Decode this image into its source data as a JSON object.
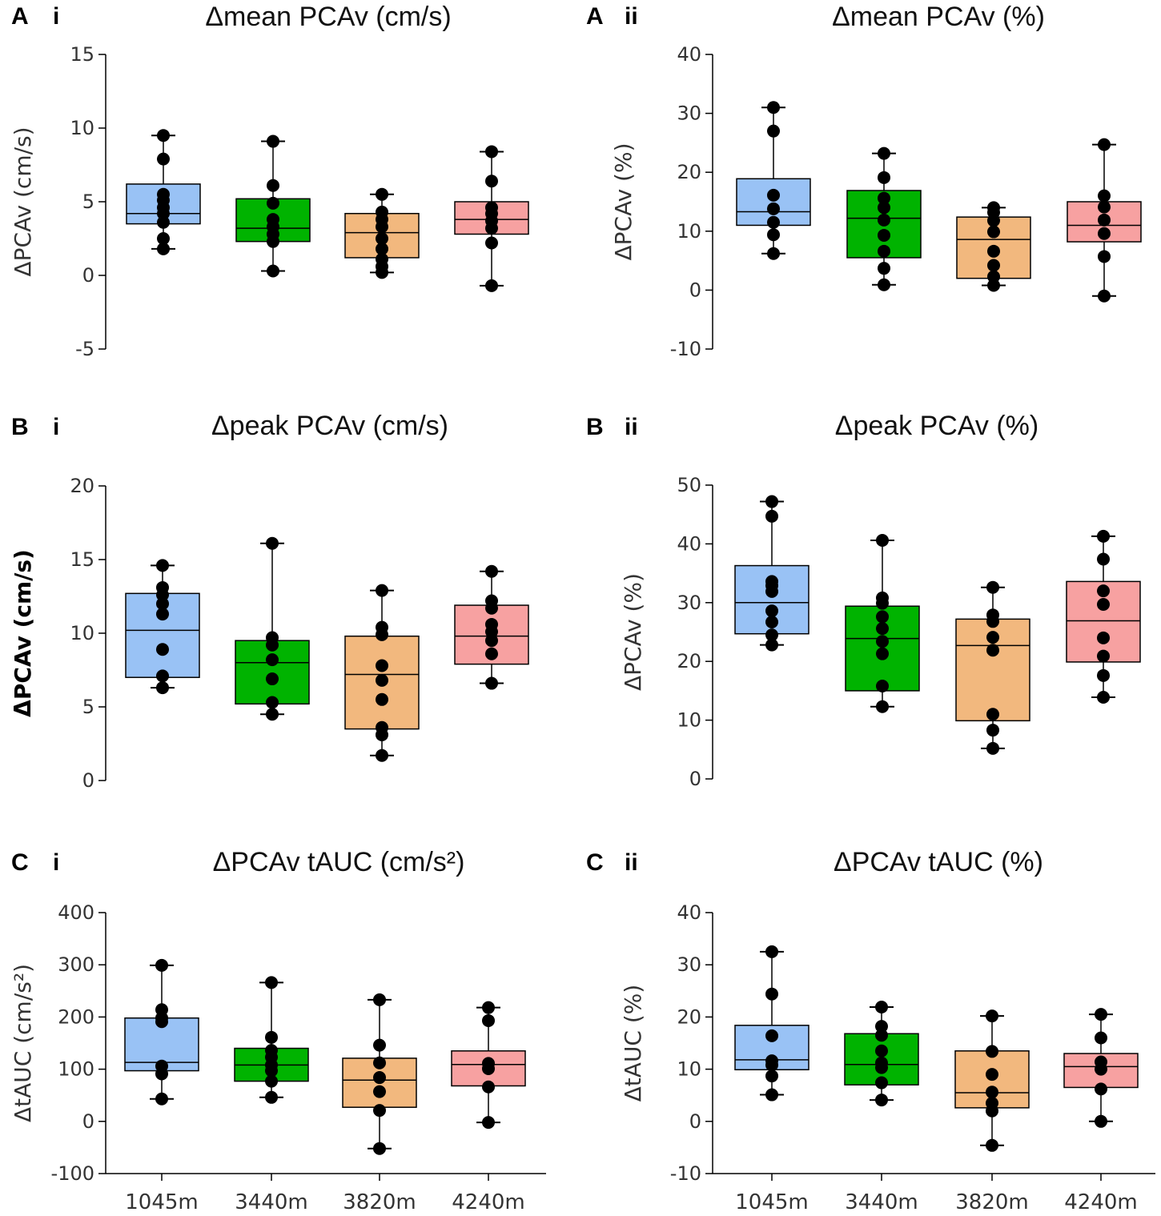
{
  "panels_meta": [
    {
      "letter": "A",
      "roman": "i"
    },
    {
      "letter": "A",
      "roman": "ii"
    },
    {
      "letter": "B",
      "roman": "i"
    },
    {
      "letter": "B",
      "roman": "ii"
    },
    {
      "letter": "C",
      "roman": "i"
    },
    {
      "letter": "C",
      "roman": "ii"
    }
  ],
  "colors": {
    "1045m": "#99c2f5",
    "3440m": "#00b300",
    "3820m": "#f2b87e",
    "4240m": "#f7a1a1",
    "point": "#000000"
  },
  "chart_data": [
    {
      "type": "box",
      "title": "Δmean PCAv (cm/s)",
      "ylabel": "ΔPCAv (cm/s)",
      "ylim": [
        -5,
        15
      ],
      "yticks": [
        -5,
        0,
        5,
        10,
        15
      ],
      "categories": [
        "1045m",
        "3440m",
        "3820m",
        "4240m"
      ],
      "boxes": [
        {
          "min": 1.8,
          "q1": 3.5,
          "median": 4.2,
          "q3": 6.2,
          "max": 9.5,
          "points": [
            1.8,
            2.5,
            3.6,
            4.2,
            4.6,
            5.1,
            5.5,
            7.9,
            9.5
          ]
        },
        {
          "min": 0.3,
          "q1": 2.3,
          "median": 3.2,
          "q3": 5.2,
          "max": 9.1,
          "points": [
            0.3,
            2.3,
            2.8,
            3.3,
            3.8,
            4.9,
            6.1,
            9.1
          ]
        },
        {
          "min": 0.2,
          "q1": 1.2,
          "median": 2.9,
          "q3": 4.2,
          "max": 5.5,
          "points": [
            0.2,
            0.6,
            1.1,
            1.8,
            2.5,
            3.3,
            3.8,
            4.3,
            5.5
          ]
        },
        {
          "min": -0.7,
          "q1": 2.8,
          "median": 3.8,
          "q3": 5.0,
          "max": 8.4,
          "points": [
            -0.7,
            2.2,
            3.2,
            3.7,
            4.2,
            4.6,
            6.4,
            8.4
          ]
        }
      ]
    },
    {
      "type": "box",
      "title": "Δmean PCAv (%)",
      "ylabel": "ΔPCAv (%)",
      "ylim": [
        -10,
        40
      ],
      "yticks": [
        -10,
        0,
        10,
        20,
        30,
        40
      ],
      "categories": [
        "1045m",
        "3440m",
        "3820m",
        "4240m"
      ],
      "boxes": [
        {
          "min": 6.2,
          "q1": 11.0,
          "median": 13.3,
          "q3": 18.9,
          "max": 31.0,
          "points": [
            6.2,
            9.4,
            11.5,
            13.8,
            16.1,
            27.0,
            31.0
          ]
        },
        {
          "min": 0.9,
          "q1": 5.5,
          "median": 12.2,
          "q3": 16.9,
          "max": 23.2,
          "points": [
            0.9,
            3.7,
            6.6,
            9.3,
            11.9,
            14.0,
            15.6,
            19.1,
            23.2
          ]
        },
        {
          "min": 0.8,
          "q1": 2.0,
          "median": 8.6,
          "q3": 12.4,
          "max": 14.0,
          "points": [
            0.8,
            2.3,
            4.2,
            6.6,
            9.9,
            11.8,
            13.2,
            14.0
          ]
        },
        {
          "min": -1.0,
          "q1": 8.2,
          "median": 11.0,
          "q3": 15.0,
          "max": 24.7,
          "points": [
            -1.0,
            5.7,
            9.6,
            11.9,
            14.1,
            16.0,
            24.7
          ]
        }
      ]
    },
    {
      "type": "box",
      "title": "Δpeak PCAv (cm/s)",
      "ylabel": "ΔPCAv (cm/s)",
      "ylabel_bold": true,
      "ylim": [
        0,
        20
      ],
      "yticks": [
        0,
        5,
        10,
        15,
        20
      ],
      "categories": [
        "1045m",
        "3440m",
        "3820m",
        "4240m"
      ],
      "boxes": [
        {
          "min": 6.3,
          "q1": 7.0,
          "median": 10.2,
          "q3": 12.7,
          "max": 14.6,
          "points": [
            6.3,
            7.1,
            8.9,
            11.3,
            12.0,
            12.6,
            13.1,
            14.6
          ]
        },
        {
          "min": 4.5,
          "q1": 5.2,
          "median": 8.0,
          "q3": 9.5,
          "max": 16.1,
          "points": [
            4.5,
            5.3,
            6.9,
            8.2,
            9.2,
            9.7,
            16.1
          ]
        },
        {
          "min": 1.7,
          "q1": 3.5,
          "median": 7.2,
          "q3": 9.8,
          "max": 12.9,
          "points": [
            1.7,
            3.1,
            3.6,
            5.5,
            6.8,
            7.8,
            9.9,
            10.4,
            12.9
          ]
        },
        {
          "min": 6.6,
          "q1": 7.9,
          "median": 9.8,
          "q3": 11.9,
          "max": 14.2,
          "points": [
            6.6,
            8.6,
            9.5,
            10.1,
            10.6,
            11.7,
            12.2,
            14.2
          ]
        }
      ]
    },
    {
      "type": "box",
      "title": "Δpeak PCAv (%)",
      "ylabel": "ΔPCAv (%)",
      "ylim": [
        0,
        50
      ],
      "yticks": [
        0,
        10,
        20,
        30,
        40,
        50
      ],
      "categories": [
        "1045m",
        "3440m",
        "3820m",
        "4240m"
      ],
      "boxes": [
        {
          "min": 22.8,
          "q1": 24.7,
          "median": 30.0,
          "q3": 36.3,
          "max": 47.2,
          "points": [
            22.8,
            24.5,
            26.7,
            28.6,
            31.9,
            32.9,
            33.6,
            44.7,
            47.2
          ]
        },
        {
          "min": 12.3,
          "q1": 15.0,
          "median": 23.9,
          "q3": 29.4,
          "max": 40.6,
          "points": [
            12.3,
            15.8,
            21.3,
            23.4,
            25.6,
            27.6,
            29.9,
            30.8,
            40.6
          ]
        },
        {
          "min": 5.2,
          "q1": 9.9,
          "median": 22.7,
          "q3": 27.2,
          "max": 32.6,
          "points": [
            5.2,
            8.3,
            11.0,
            21.9,
            24.1,
            26.8,
            27.9,
            32.6
          ]
        },
        {
          "min": 13.9,
          "q1": 19.9,
          "median": 26.9,
          "q3": 33.6,
          "max": 41.3,
          "points": [
            13.9,
            17.6,
            20.9,
            24.0,
            29.7,
            32.0,
            37.4,
            41.3
          ]
        }
      ]
    },
    {
      "type": "box",
      "title": "ΔPCAv tAUC (cm/s²)",
      "ylabel": "ΔtAUC (cm/s²)",
      "ylim": [
        -100,
        400
      ],
      "yticks": [
        -100,
        0,
        100,
        200,
        300,
        400
      ],
      "xlabels_visible": true,
      "categories": [
        "1045m",
        "3440m",
        "3820m",
        "4240m"
      ],
      "boxes": [
        {
          "min": 43,
          "q1": 97,
          "median": 113,
          "q3": 198,
          "max": 299,
          "points": [
            43,
            91,
            106,
            191,
            198,
            214,
            299
          ]
        },
        {
          "min": 46,
          "q1": 77,
          "median": 108,
          "q3": 140,
          "max": 266,
          "points": [
            46,
            77,
            97,
            108,
            123,
            136,
            161,
            266
          ]
        },
        {
          "min": -52,
          "q1": 27,
          "median": 79,
          "q3": 121,
          "max": 233,
          "points": [
            -52,
            21,
            57,
            84,
            112,
            146,
            233
          ]
        },
        {
          "min": -2,
          "q1": 68,
          "median": 109,
          "q3": 135,
          "max": 218,
          "points": [
            -2,
            66,
            101,
            111,
            193,
            218
          ]
        }
      ]
    },
    {
      "type": "box",
      "title": "ΔPCAv tAUC (%)",
      "ylabel": "ΔtAUC (%)",
      "ylim": [
        -10,
        40
      ],
      "yticks": [
        -10,
        0,
        10,
        20,
        30,
        40
      ],
      "xlabels_visible": true,
      "categories": [
        "1045m",
        "3440m",
        "3820m",
        "4240m"
      ],
      "boxes": [
        {
          "min": 5.1,
          "q1": 9.9,
          "median": 11.8,
          "q3": 18.4,
          "max": 32.5,
          "points": [
            5.1,
            8.7,
            10.8,
            11.6,
            16.4,
            24.4,
            32.5
          ]
        },
        {
          "min": 4.1,
          "q1": 7.0,
          "median": 10.9,
          "q3": 16.8,
          "max": 21.9,
          "points": [
            4.1,
            7.4,
            10.3,
            11.2,
            13.5,
            16.5,
            18.2,
            21.9
          ]
        },
        {
          "min": -4.6,
          "q1": 2.6,
          "median": 5.5,
          "q3": 13.5,
          "max": 20.2,
          "points": [
            -4.6,
            2.0,
            3.5,
            5.6,
            9.0,
            13.4,
            20.2
          ]
        },
        {
          "min": 0.0,
          "q1": 6.5,
          "median": 10.5,
          "q3": 13.0,
          "max": 20.5,
          "points": [
            0.0,
            6.2,
            10.0,
            11.4,
            16.0,
            20.5
          ]
        }
      ]
    }
  ]
}
